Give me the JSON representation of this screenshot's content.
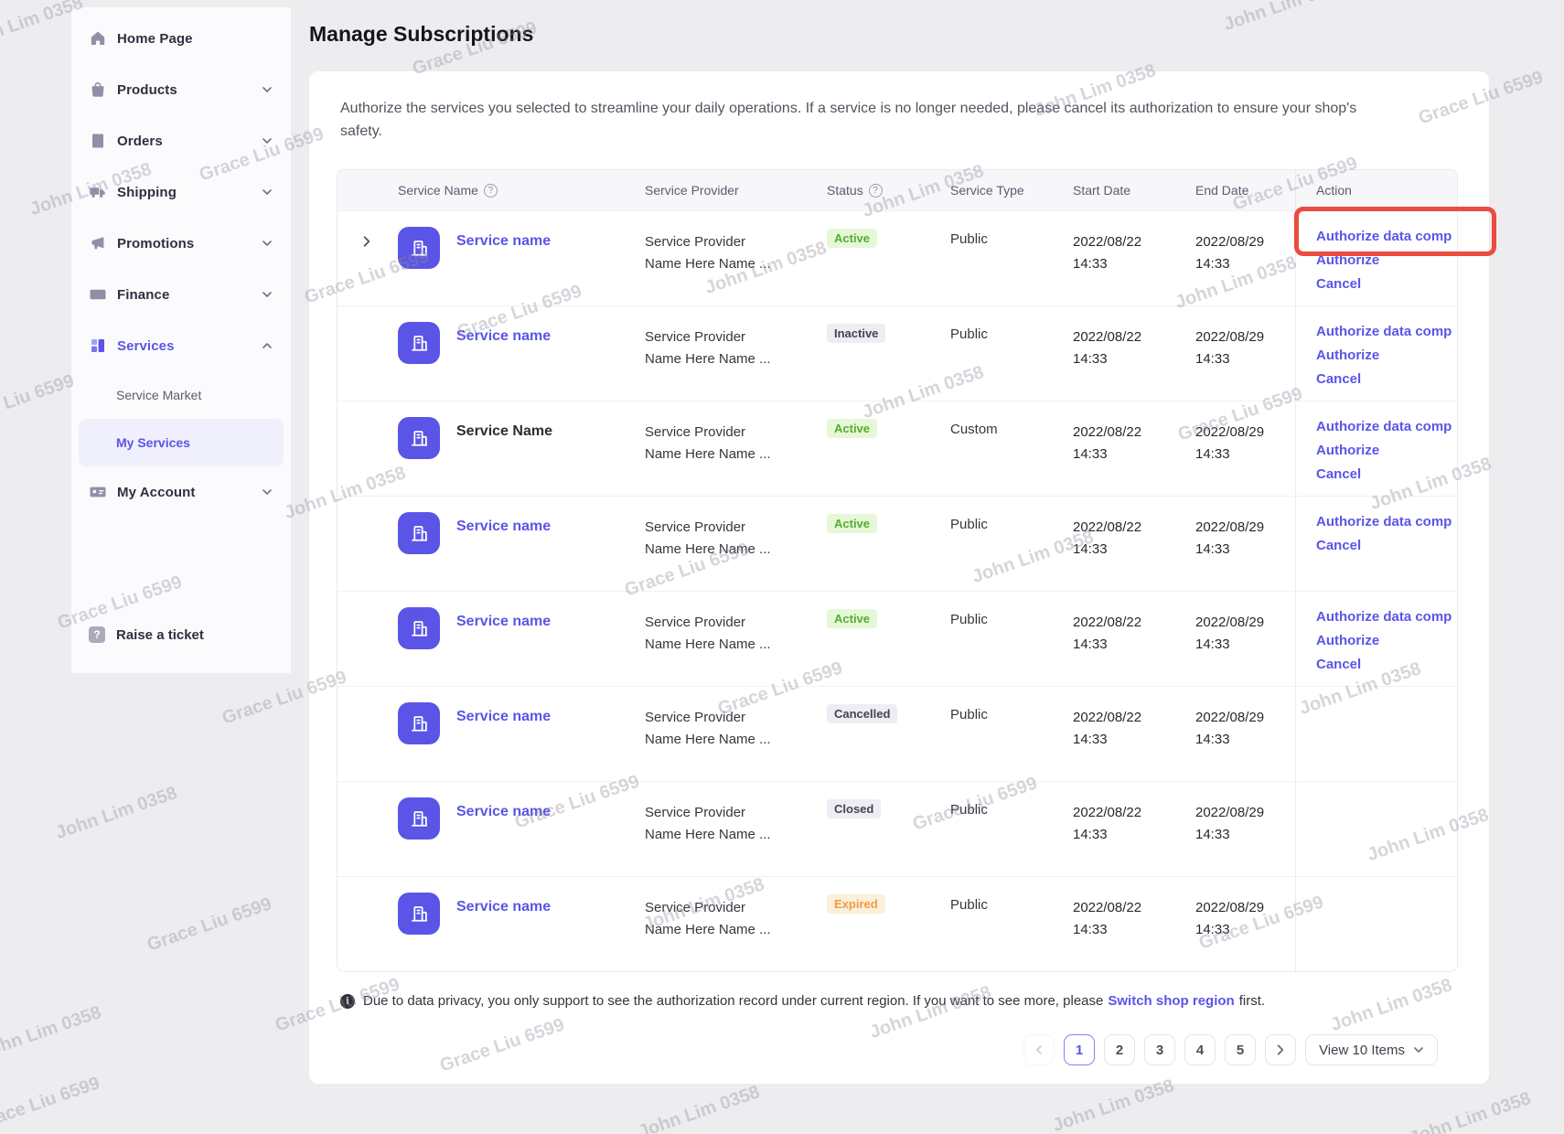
{
  "colors": {
    "accent": "#5a55e6",
    "highlight": "#ec4b3f",
    "green_bg": "#e6f8d8",
    "green_text": "#52ae30",
    "gray_bg": "#ededf3",
    "gray_text": "#44454f",
    "orange_bg": "#fcefdb",
    "orange_text": "#ee9d3d"
  },
  "watermarks": {
    "user_a": "John Lim 0358",
    "user_b": "Grace Liu 6599"
  },
  "sidebar": {
    "items": [
      {
        "label": "Home Page",
        "icon": "home",
        "chevron": null
      },
      {
        "label": "Products",
        "icon": "bag",
        "chevron": "down"
      },
      {
        "label": "Orders",
        "icon": "orders",
        "chevron": "down"
      },
      {
        "label": "Shipping",
        "icon": "truck",
        "chevron": "down"
      },
      {
        "label": "Promotions",
        "icon": "megaphone",
        "chevron": "down"
      },
      {
        "label": "Finance",
        "icon": "card",
        "chevron": "down"
      },
      {
        "label": "Services",
        "icon": "services",
        "chevron": "up",
        "active": true,
        "children": [
          {
            "label": "Service Market",
            "selected": false
          },
          {
            "label": "My Services",
            "selected": true
          }
        ]
      },
      {
        "label": "My Account",
        "icon": "account",
        "chevron": "down"
      }
    ],
    "footer_item": {
      "label": "Raise a ticket",
      "icon": "ticket"
    }
  },
  "page": {
    "title": "Manage Subscriptions",
    "description": "Authorize the services you selected to streamline your daily operations. If a service is no longer needed, please cancel its authorization to ensure your shop's safety."
  },
  "table": {
    "headers": [
      {
        "label": "Service Name",
        "help": true
      },
      {
        "label": "Service Provider",
        "help": false
      },
      {
        "label": "Status",
        "help": true
      },
      {
        "label": "Service Type",
        "help": false
      },
      {
        "label": "Start Date",
        "help": false
      },
      {
        "label": "End Date",
        "help": false
      },
      {
        "label": "Action",
        "help": false
      }
    ],
    "rows": [
      {
        "expandable": true,
        "name": "Service name",
        "name_is_link": true,
        "provider_line1": "Service Provider",
        "provider_line2": "Name Here Name ...",
        "status": {
          "label": "Active",
          "variant": "green"
        },
        "type": "Public",
        "start_date": "2022/08/22",
        "start_time": "14:33",
        "end_date": "2022/08/29",
        "end_time": "14:33",
        "actions": [
          "Authorize data comp",
          "Authorize",
          "Cancel"
        ],
        "highlight_first_action": true
      },
      {
        "expandable": false,
        "name": "Service name",
        "name_is_link": true,
        "provider_line1": "Service Provider",
        "provider_line2": "Name Here Name ...",
        "status": {
          "label": "Inactive",
          "variant": "gray"
        },
        "type": "Public",
        "start_date": "2022/08/22",
        "start_time": "14:33",
        "end_date": "2022/08/29",
        "end_time": "14:33",
        "actions": [
          "Authorize data comp",
          "Authorize",
          "Cancel"
        ]
      },
      {
        "expandable": false,
        "name": "Service Name",
        "name_is_link": false,
        "provider_line1": "Service Provider",
        "provider_line2": "Name Here Name ...",
        "status": {
          "label": "Active",
          "variant": "green"
        },
        "type": "Custom",
        "start_date": "2022/08/22",
        "start_time": "14:33",
        "end_date": "2022/08/29",
        "end_time": "14:33",
        "actions": [
          "Authorize data comp",
          "Authorize",
          "Cancel"
        ]
      },
      {
        "expandable": false,
        "name": "Service name",
        "name_is_link": true,
        "provider_line1": "Service Provider",
        "provider_line2": "Name Here Name ...",
        "status": {
          "label": "Active",
          "variant": "green"
        },
        "type": "Public",
        "start_date": "2022/08/22",
        "start_time": "14:33",
        "end_date": "2022/08/29",
        "end_time": "14:33",
        "actions": [
          "Authorize data comp",
          "Cancel"
        ]
      },
      {
        "expandable": false,
        "name": "Service name",
        "name_is_link": true,
        "provider_line1": "Service Provider",
        "provider_line2": "Name Here Name ...",
        "status": {
          "label": "Active",
          "variant": "green"
        },
        "type": "Public",
        "start_date": "2022/08/22",
        "start_time": "14:33",
        "end_date": "2022/08/29",
        "end_time": "14:33",
        "actions": [
          "Authorize data comp",
          "Authorize",
          "Cancel"
        ]
      },
      {
        "expandable": false,
        "name": "Service name",
        "name_is_link": true,
        "provider_line1": "Service Provider",
        "provider_line2": "Name Here Name ...",
        "status": {
          "label": "Cancelled",
          "variant": "gray"
        },
        "type": "Public",
        "start_date": "2022/08/22",
        "start_time": "14:33",
        "end_date": "2022/08/29",
        "end_time": "14:33",
        "actions": []
      },
      {
        "expandable": false,
        "name": "Service name",
        "name_is_link": true,
        "provider_line1": "Service Provider",
        "provider_line2": "Name Here Name ...",
        "status": {
          "label": "Closed",
          "variant": "gray"
        },
        "type": "Public",
        "start_date": "2022/08/22",
        "start_time": "14:33",
        "end_date": "2022/08/29",
        "end_time": "14:33",
        "actions": []
      },
      {
        "expandable": false,
        "name": "Service name",
        "name_is_link": true,
        "provider_line1": "Service Provider",
        "provider_line2": "Name Here Name ...",
        "status": {
          "label": "Expired",
          "variant": "orange"
        },
        "type": "Public",
        "start_date": "2022/08/22",
        "start_time": "14:33",
        "end_date": "2022/08/29",
        "end_time": "14:33",
        "actions": []
      }
    ]
  },
  "note": {
    "prefix": "Due to data privacy, you only support to see the authorization record under current region. If you want to see more, please",
    "link": "Switch shop region",
    "suffix": "first."
  },
  "pagination": {
    "pages": [
      "1",
      "2",
      "3",
      "4",
      "5"
    ],
    "current": "1",
    "page_size_label": "View 10 Items"
  }
}
